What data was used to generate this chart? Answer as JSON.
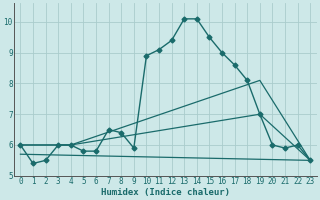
{
  "xlabel": "Humidex (Indice chaleur)",
  "ylabel": "",
  "background_color": "#cde8e8",
  "grid_color": "#aacccc",
  "line_color": "#1a6b6b",
  "xlim": [
    -0.5,
    23.5
  ],
  "ylim": [
    5.0,
    10.6
  ],
  "yticks": [
    5,
    6,
    7,
    8,
    9,
    10
  ],
  "xticks": [
    0,
    1,
    2,
    3,
    4,
    5,
    6,
    7,
    8,
    9,
    10,
    11,
    12,
    13,
    14,
    15,
    16,
    17,
    18,
    19,
    20,
    21,
    22,
    23
  ],
  "series": [
    {
      "x": [
        0,
        1,
        2,
        3,
        4,
        5,
        6,
        7,
        8,
        9,
        10,
        11,
        12,
        13,
        14,
        15,
        16,
        17,
        18,
        19,
        20,
        21,
        22,
        23
      ],
      "y": [
        6.0,
        5.4,
        5.5,
        6.0,
        6.0,
        5.8,
        5.8,
        6.5,
        6.4,
        5.9,
        8.9,
        9.1,
        9.4,
        10.1,
        10.1,
        9.5,
        9.0,
        8.6,
        8.1,
        7.0,
        6.0,
        5.9,
        6.0,
        5.5
      ],
      "marker": "D",
      "markersize": 2.5,
      "linewidth": 1.0,
      "has_markers": true
    },
    {
      "x": [
        0,
        4,
        19,
        23
      ],
      "y": [
        6.0,
        6.0,
        8.1,
        5.5
      ],
      "marker": null,
      "markersize": 0,
      "linewidth": 0.9,
      "has_markers": false
    },
    {
      "x": [
        0,
        4,
        19,
        23
      ],
      "y": [
        6.0,
        6.0,
        7.0,
        5.5
      ],
      "marker": null,
      "markersize": 0,
      "linewidth": 0.9,
      "has_markers": false
    },
    {
      "x": [
        0,
        23
      ],
      "y": [
        5.7,
        5.5
      ],
      "marker": null,
      "markersize": 0,
      "linewidth": 0.9,
      "has_markers": false
    }
  ]
}
